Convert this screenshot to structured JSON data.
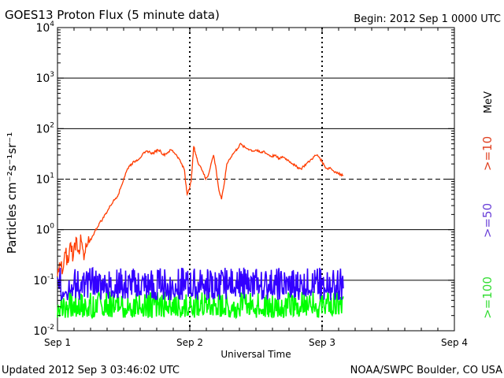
{
  "header": {
    "title": "GOES13 Proton Flux (5 minute data)",
    "begin": "Begin: 2012 Sep 1 0000 UTC"
  },
  "footer": {
    "updated": "Updated 2012 Sep  3 03:46:02 UTC",
    "source": "NOAA/SWPC Boulder, CO USA"
  },
  "colors": {
    "ge10": "#ff3c00",
    "ge50": "#3300ff",
    "ge100": "#00ff00",
    "ge10_label": "#e04020",
    "ge50_label": "#6a40d8",
    "ge100_label": "#33dd33"
  },
  "chart_data": {
    "type": "line",
    "title": "GOES13 Proton Flux (5 minute data)",
    "xlabel": "Universal Time",
    "ylabel": "Particles cm⁻²s⁻¹sr⁻¹",
    "yscale": "log",
    "ylim": [
      0.01,
      10000
    ],
    "x_units": "days since 2012 Sep 1 0000 UTC",
    "xlim": [
      0,
      3
    ],
    "x_ticks": [
      {
        "value": 0,
        "label": "Sep 1"
      },
      {
        "value": 1,
        "label": "Sep 2"
      },
      {
        "value": 2,
        "label": "Sep 3"
      },
      {
        "value": 3,
        "label": "Sep 4"
      }
    ],
    "y_ticks": [
      {
        "value": 0.01,
        "base": "10",
        "exp": "-2"
      },
      {
        "value": 0.1,
        "base": "10",
        "exp": "-1"
      },
      {
        "value": 1,
        "base": "10",
        "exp": "0"
      },
      {
        "value": 10,
        "base": "10",
        "exp": "1"
      },
      {
        "value": 100,
        "base": "10",
        "exp": "2"
      },
      {
        "value": 1000,
        "base": "10",
        "exp": "3"
      },
      {
        "value": 10000,
        "base": "10",
        "exp": "4"
      }
    ],
    "threshold": 10,
    "unit_label": "MeV",
    "grid": "horizontal solid at decades, dashed at 10",
    "series": [
      {
        "name": ">=10",
        "color": "#ff3c00",
        "x": [
          0.0,
          0.02,
          0.04,
          0.06,
          0.08,
          0.1,
          0.12,
          0.14,
          0.16,
          0.18,
          0.2,
          0.22,
          0.24,
          0.26,
          0.28,
          0.3,
          0.32,
          0.34,
          0.36,
          0.38,
          0.4,
          0.42,
          0.44,
          0.46,
          0.48,
          0.5,
          0.52,
          0.54,
          0.56,
          0.58,
          0.6,
          0.62,
          0.64,
          0.66,
          0.68,
          0.7,
          0.72,
          0.74,
          0.76,
          0.78,
          0.8,
          0.82,
          0.84,
          0.86,
          0.88,
          0.9,
          0.92,
          0.94,
          0.96,
          0.97,
          0.98,
          0.99,
          1.0,
          1.01,
          1.02,
          1.03,
          1.04,
          1.05,
          1.06,
          1.08,
          1.1,
          1.12,
          1.14,
          1.16,
          1.18,
          1.2,
          1.22,
          1.24,
          1.26,
          1.28,
          1.3,
          1.32,
          1.34,
          1.36,
          1.38,
          1.4,
          1.42,
          1.44,
          1.46,
          1.48,
          1.5,
          1.52,
          1.54,
          1.56,
          1.58,
          1.6,
          1.62,
          1.64,
          1.66,
          1.68,
          1.7,
          1.72,
          1.74,
          1.76,
          1.78,
          1.8,
          1.82,
          1.84,
          1.86,
          1.88,
          1.9,
          1.92,
          1.94,
          1.96,
          1.98,
          2.0,
          2.02,
          2.04,
          2.06,
          2.08,
          2.1,
          2.12,
          2.14,
          2.16
        ],
        "values": [
          0.12,
          0.2,
          0.15,
          0.35,
          0.22,
          0.55,
          0.3,
          0.7,
          0.4,
          0.6,
          0.25,
          0.45,
          0.55,
          0.7,
          0.9,
          1.1,
          1.4,
          1.6,
          2.0,
          2.4,
          3.0,
          3.6,
          4.2,
          5.0,
          7.0,
          10.0,
          14.0,
          18.0,
          20.0,
          22.0,
          24.0,
          26.0,
          30.0,
          33.0,
          36.0,
          34.0,
          32.0,
          35.0,
          38.0,
          36.0,
          30.0,
          32.0,
          35.0,
          38.0,
          34.0,
          30.0,
          25.0,
          20.0,
          15.0,
          8.0,
          5.0,
          6.0,
          7.0,
          9.0,
          20.0,
          45.0,
          35.0,
          28.0,
          22.0,
          18.0,
          14.0,
          10.0,
          12.0,
          20.0,
          30.0,
          15.0,
          6.0,
          4.0,
          8.0,
          20.0,
          25.0,
          30.0,
          35.0,
          40.0,
          50.0,
          45.0,
          42.0,
          40.0,
          38.0,
          36.0,
          38.0,
          35.0,
          33.0,
          36.0,
          32.0,
          30.0,
          28.0,
          30.0,
          27.0,
          25.0,
          28.0,
          26.0,
          24.0,
          22.0,
          20.0,
          18.0,
          17.0,
          16.0,
          18.0,
          20.0,
          22.0,
          25.0,
          28.0,
          30.0,
          27.0,
          22.0,
          18.0,
          16.0,
          17.0,
          15.0,
          14.0,
          13.0,
          12.5,
          12.0
        ]
      },
      {
        "name": ">=50",
        "color": "#3300ff",
        "x": [
          0.0,
          2.16
        ],
        "range": [
          0.04,
          0.18
        ],
        "typical": 0.07
      },
      {
        "name": ">=100",
        "color": "#00ff00",
        "x": [
          0.0,
          2.16
        ],
        "range": [
          0.018,
          0.06
        ],
        "typical": 0.03
      }
    ]
  }
}
